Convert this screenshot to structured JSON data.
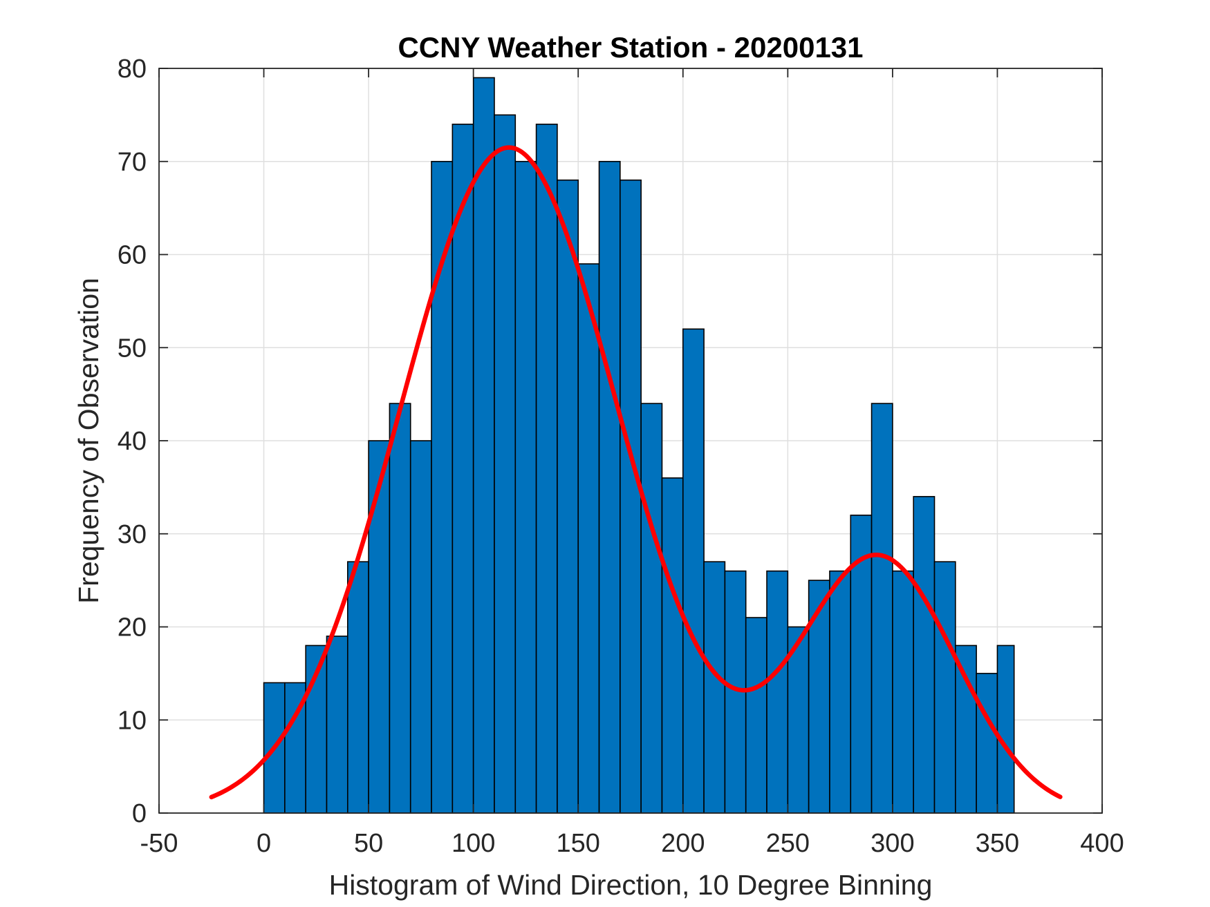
{
  "chart_data": {
    "type": "bar",
    "title": "CCNY Weather Station - 20200131",
    "xlabel": "Histogram of Wind Direction, 10 Degree Binning",
    "ylabel": "Frequency of Observation",
    "xlim": [
      -50,
      400
    ],
    "ylim": [
      0,
      80
    ],
    "xticks": [
      -50,
      0,
      50,
      100,
      150,
      200,
      250,
      300,
      350,
      400
    ],
    "yticks": [
      0,
      10,
      20,
      30,
      40,
      50,
      60,
      70,
      80
    ],
    "grid": true,
    "bin_width": 10,
    "bins": [
      {
        "start": 0,
        "end": 10,
        "count": 14
      },
      {
        "start": 10,
        "end": 20,
        "count": 14
      },
      {
        "start": 20,
        "end": 30,
        "count": 18
      },
      {
        "start": 30,
        "end": 40,
        "count": 19
      },
      {
        "start": 40,
        "end": 50,
        "count": 27
      },
      {
        "start": 50,
        "end": 60,
        "count": 40
      },
      {
        "start": 60,
        "end": 70,
        "count": 44
      },
      {
        "start": 70,
        "end": 80,
        "count": 40
      },
      {
        "start": 80,
        "end": 90,
        "count": 70
      },
      {
        "start": 90,
        "end": 100,
        "count": 74
      },
      {
        "start": 100,
        "end": 110,
        "count": 79
      },
      {
        "start": 110,
        "end": 120,
        "count": 75
      },
      {
        "start": 120,
        "end": 130,
        "count": 70
      },
      {
        "start": 130,
        "end": 140,
        "count": 74
      },
      {
        "start": 140,
        "end": 150,
        "count": 68
      },
      {
        "start": 150,
        "end": 160,
        "count": 59
      },
      {
        "start": 160,
        "end": 170,
        "count": 70
      },
      {
        "start": 170,
        "end": 180,
        "count": 68
      },
      {
        "start": 180,
        "end": 190,
        "count": 44
      },
      {
        "start": 190,
        "end": 200,
        "count": 36
      },
      {
        "start": 200,
        "end": 210,
        "count": 52
      },
      {
        "start": 210,
        "end": 220,
        "count": 27
      },
      {
        "start": 220,
        "end": 230,
        "count": 26
      },
      {
        "start": 230,
        "end": 240,
        "count": 21
      },
      {
        "start": 240,
        "end": 250,
        "count": 26
      },
      {
        "start": 250,
        "end": 260,
        "count": 20
      },
      {
        "start": 260,
        "end": 270,
        "count": 25
      },
      {
        "start": 270,
        "end": 280,
        "count": 26
      },
      {
        "start": 280,
        "end": 290,
        "count": 32
      },
      {
        "start": 290,
        "end": 300,
        "count": 44
      },
      {
        "start": 300,
        "end": 310,
        "count": 26
      },
      {
        "start": 310,
        "end": 320,
        "count": 34
      },
      {
        "start": 320,
        "end": 330,
        "count": 27
      },
      {
        "start": 330,
        "end": 340,
        "count": 18
      },
      {
        "start": 340,
        "end": 350,
        "count": 15
      },
      {
        "start": 350,
        "end": 358,
        "count": 18
      }
    ],
    "fit_curve": {
      "name": "two-term gaussian fit",
      "x_range": [
        -25,
        380
      ],
      "components": [
        {
          "amplitude": 71.5,
          "center": 117,
          "sigma": 52
        },
        {
          "amplitude": 27.5,
          "center": 293,
          "sigma": 37
        }
      ]
    },
    "colors": {
      "bar_fill": "#0072BD",
      "bar_edge": "#000000",
      "fit_line": "#FF0000",
      "grid": "#dfdfdf",
      "axes": "#262626"
    }
  }
}
